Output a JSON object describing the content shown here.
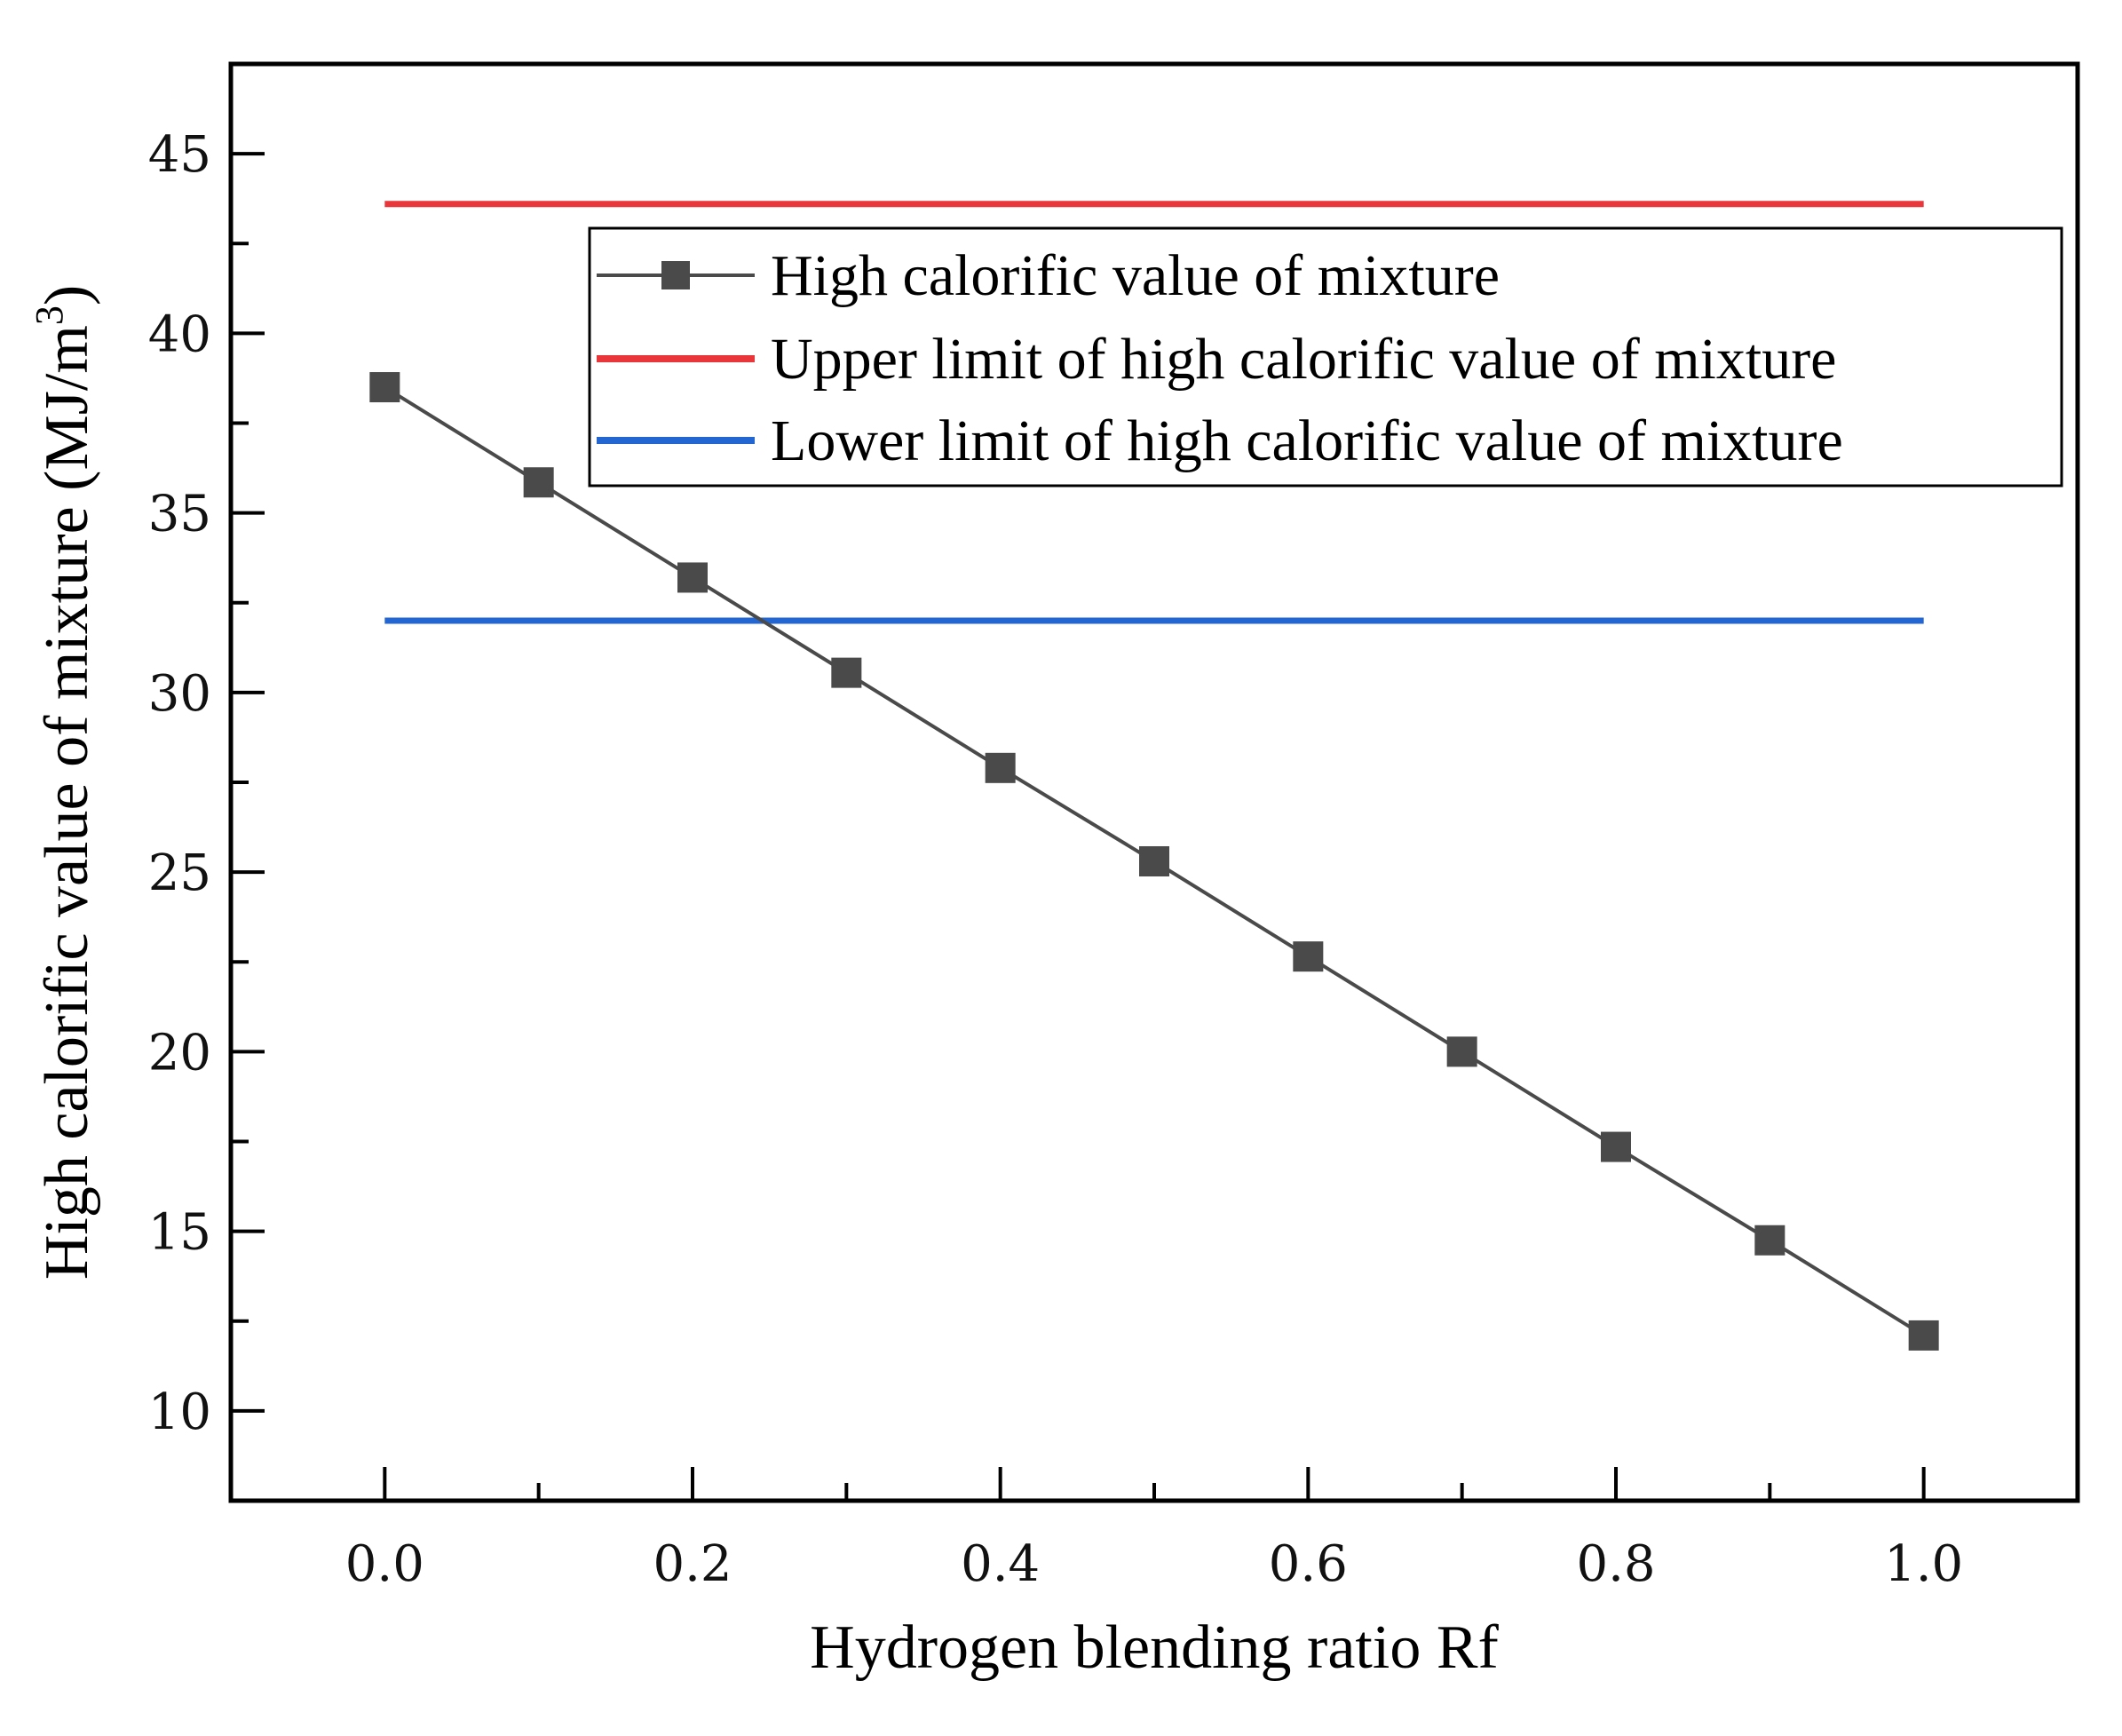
{
  "chart_data": {
    "type": "line",
    "xlabel": "Hydrogen blending ratio Rf",
    "ylabel_main": "High calorific value of mixture (MJ/m",
    "ylabel_sup": "3",
    "ylabel_close": ")",
    "xlim": [
      -0.1,
      1.1
    ],
    "ylim": [
      7.5,
      47.5
    ],
    "x_ticks": [
      0.0,
      0.2,
      0.4,
      0.6,
      0.8,
      1.0
    ],
    "x_tick_labels": [
      "0.0",
      "0.2",
      "0.4",
      "0.6",
      "0.8",
      "1.0"
    ],
    "x_minor_ticks": [
      0.1,
      0.3,
      0.5,
      0.7,
      0.9
    ],
    "y_ticks": [
      10,
      15,
      20,
      25,
      30,
      35,
      40,
      45
    ],
    "y_tick_labels": [
      "10",
      "15",
      "20",
      "25",
      "30",
      "35",
      "40",
      "45"
    ],
    "y_minor_ticks": [
      12.5,
      17.5,
      22.5,
      27.5,
      32.5,
      37.5,
      42.5
    ],
    "legend_position": "top-right",
    "series": [
      {
        "name": "High calorific value of mixture",
        "style": "line-square-markers",
        "color": "#4a4a4a",
        "x": [
          0.0,
          0.1,
          0.2,
          0.3,
          0.4,
          0.5,
          0.6,
          0.7,
          0.8,
          0.9,
          1.0
        ],
        "values": [
          38.5,
          35.85,
          33.2,
          30.55,
          27.9,
          25.3,
          22.65,
          20.0,
          17.35,
          14.75,
          12.1
        ]
      },
      {
        "name": "Upper limit of high calorific value of mixture",
        "style": "line",
        "color": "#e8363a",
        "x": [
          0.0,
          1.0
        ],
        "values": [
          43.6,
          43.6
        ]
      },
      {
        "name": "Lower limit of high calorific value of mixture",
        "style": "line",
        "color": "#2366d1",
        "x": [
          0.0,
          1.0
        ],
        "values": [
          32.0,
          32.0
        ]
      }
    ]
  }
}
